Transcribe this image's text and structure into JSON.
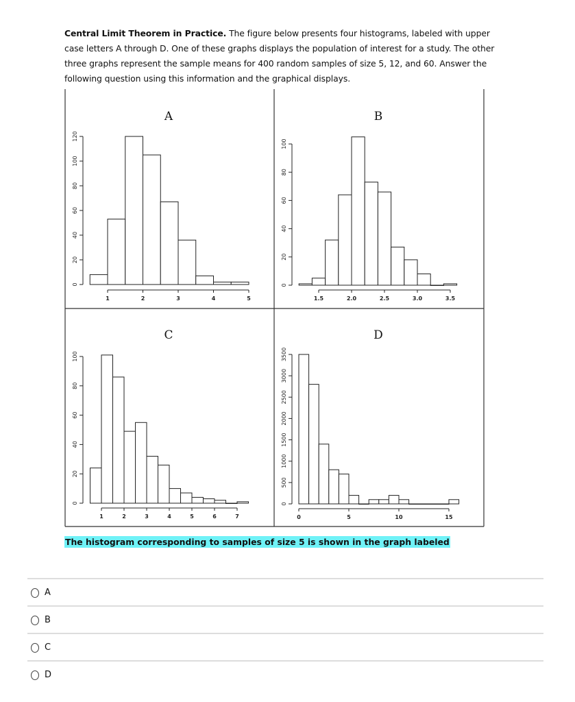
{
  "intro": {
    "bold": "Central Limit Theorem in Practice.",
    "text": " The figure below presents four histograms, labeled with upper case letters A through D. One of these graphs displays the population of interest for a study. The other three graphs represent the sample means for 400 random samples of size 5, 12, and 60. Answer the following question using this information and the graphical displays."
  },
  "question": "The histogram corresponding to samples of size 5 is shown in the graph labeled",
  "options": [
    {
      "label": "A",
      "selected": false
    },
    {
      "label": "B",
      "selected": false
    },
    {
      "label": "C",
      "selected": false
    },
    {
      "label": "D",
      "selected": false
    }
  ],
  "colors": {
    "highlight": "#6ff2f7",
    "bar_fill": "#ffffff",
    "bar_stroke": "#222222"
  },
  "chart_data": [
    {
      "type": "bar",
      "title": "A",
      "bin_start": 0.5,
      "bin_width": 0.5,
      "values": [
        8,
        53,
        120,
        105,
        67,
        36,
        7,
        2,
        2
      ],
      "xticks": [
        "1",
        "2",
        "3",
        "4",
        "5"
      ],
      "yticks": [
        "0",
        "20",
        "40",
        "60",
        "80",
        "100",
        "120"
      ]
    },
    {
      "type": "bar",
      "title": "B",
      "bin_start": 1.2,
      "bin_width": 0.2,
      "values": [
        1,
        5,
        32,
        64,
        105,
        73,
        66,
        27,
        18,
        8,
        0,
        1
      ],
      "xticks": [
        "1.5",
        "2.0",
        "2.5",
        "3.0",
        "3.5"
      ],
      "yticks": [
        "0",
        "20",
        "40",
        "60",
        "80",
        "100"
      ]
    },
    {
      "type": "bar",
      "title": "C",
      "bin_start": 0.5,
      "bin_width": 0.5,
      "values": [
        24,
        101,
        86,
        49,
        55,
        32,
        26,
        10,
        7,
        4,
        3,
        2,
        0,
        1
      ],
      "xticks": [
        "1",
        "2",
        "3",
        "4",
        "5",
        "6",
        "7"
      ],
      "yticks": [
        "0",
        "20",
        "40",
        "60",
        "80",
        "100"
      ]
    },
    {
      "type": "bar",
      "title": "D",
      "bin_start": 0,
      "bin_width": 1,
      "values": [
        3500,
        2800,
        1400,
        800,
        700,
        200,
        0,
        100,
        100,
        200,
        100,
        0,
        0,
        0,
        0,
        100
      ],
      "xticks": [
        "0",
        "5",
        "10",
        "15"
      ],
      "yticks": [
        "0",
        "500",
        "1000",
        "1500",
        "2000",
        "2500",
        "3000",
        "3500"
      ]
    }
  ]
}
